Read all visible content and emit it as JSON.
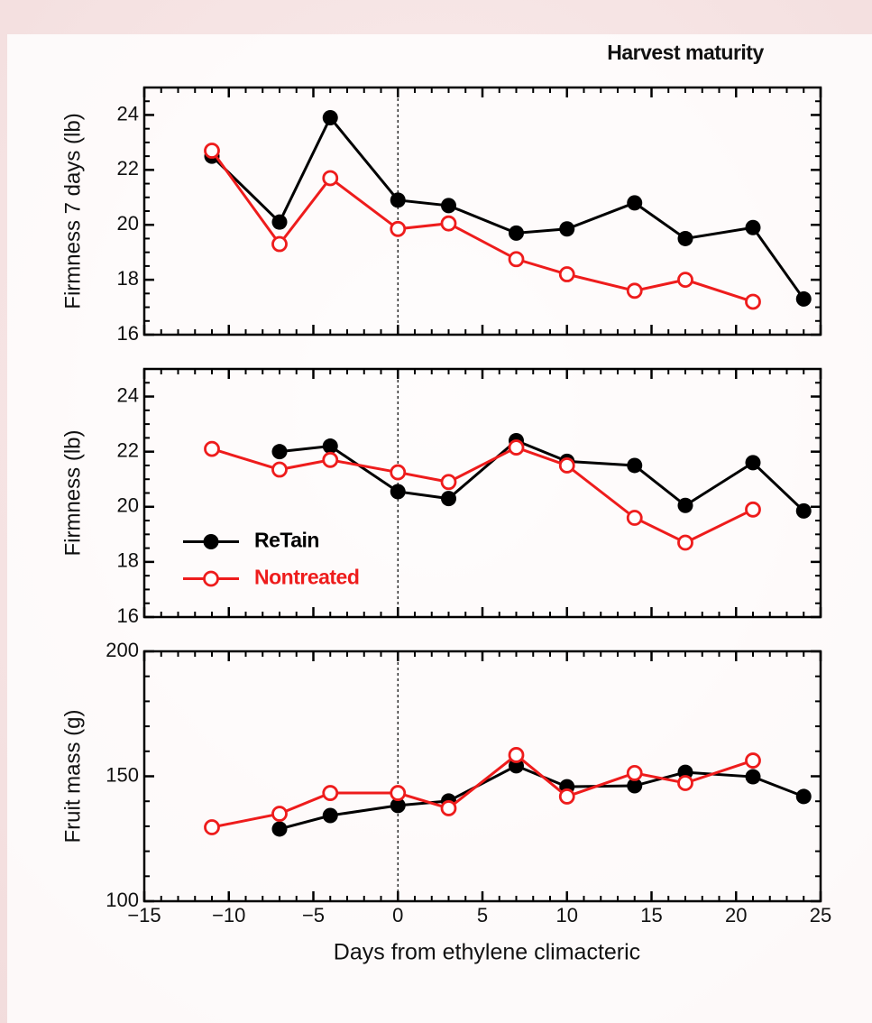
{
  "chart_data": [
    {
      "type": "line",
      "annotation": "Harvest maturity",
      "ylabel": "Firmness 7 days (lb)",
      "x": [
        -11,
        -7,
        -4,
        0,
        3,
        7,
        10,
        14,
        17,
        21,
        24
      ],
      "series": [
        {
          "color": "#000000",
          "marker": "filled",
          "values": [
            22.5,
            20.1,
            23.9,
            20.9,
            20.7,
            19.7,
            19.85,
            20.8,
            19.5,
            19.9,
            17.3
          ]
        },
        {
          "color": "#ee1c1c",
          "marker": "open",
          "values": [
            22.7,
            19.3,
            21.7,
            19.85,
            20.05,
            18.75,
            18.2,
            17.6,
            18.0,
            17.2,
            null
          ]
        }
      ],
      "xlim": [
        -15,
        25
      ],
      "ylim": [
        16,
        25
      ],
      "yticks": [
        16,
        18,
        20,
        22,
        24
      ],
      "reference_x": 0
    },
    {
      "type": "line",
      "ylabel": "Firmness (lb)",
      "legend": "center left",
      "x": [
        -11,
        -7,
        -4,
        0,
        3,
        7,
        10,
        14,
        17,
        21,
        24
      ],
      "series": [
        {
          "name": "ReTain",
          "color": "#000000",
          "marker": "filled",
          "values": [
            null,
            22.0,
            22.2,
            20.55,
            20.3,
            22.4,
            21.65,
            21.5,
            20.05,
            21.6,
            19.85
          ]
        },
        {
          "name": "Nontreated",
          "color": "#ee1c1c",
          "marker": "open",
          "values": [
            22.1,
            21.35,
            21.7,
            21.25,
            20.9,
            22.15,
            21.5,
            19.6,
            18.7,
            19.9,
            null
          ]
        }
      ],
      "xlim": [
        -15,
        25
      ],
      "ylim": [
        16,
        25
      ],
      "yticks": [
        16,
        18,
        20,
        22,
        24
      ],
      "reference_x": 0
    },
    {
      "type": "line",
      "ylabel": "Fruit mass (g)",
      "xlabel": "Days from ethylene climacteric",
      "x": [
        -11,
        -7,
        -4,
        0,
        3,
        7,
        10,
        14,
        17,
        21,
        24
      ],
      "series": [
        {
          "color": "#000000",
          "marker": "filled",
          "values": [
            null,
            128.9,
            134.3,
            138.3,
            140.1,
            154.2,
            145.8,
            146.2,
            151.6,
            149.8,
            141.9
          ]
        },
        {
          "color": "#ee1c1c",
          "marker": "open",
          "values": [
            129.6,
            135,
            143.3,
            143.3,
            137.2,
            158.5,
            141.9,
            151.3,
            147.3,
            156.3,
            null
          ]
        }
      ],
      "xlim": [
        -15,
        25
      ],
      "ylim": [
        100,
        200
      ],
      "yticks": [
        100,
        150,
        200
      ],
      "reference_x": 0,
      "xticks": [
        {
          "value": -15,
          "label": "−15"
        },
        {
          "value": -10,
          "label": "−10"
        },
        {
          "value": -5,
          "label": "−5"
        },
        0,
        5,
        10,
        15,
        20,
        25
      ]
    }
  ]
}
